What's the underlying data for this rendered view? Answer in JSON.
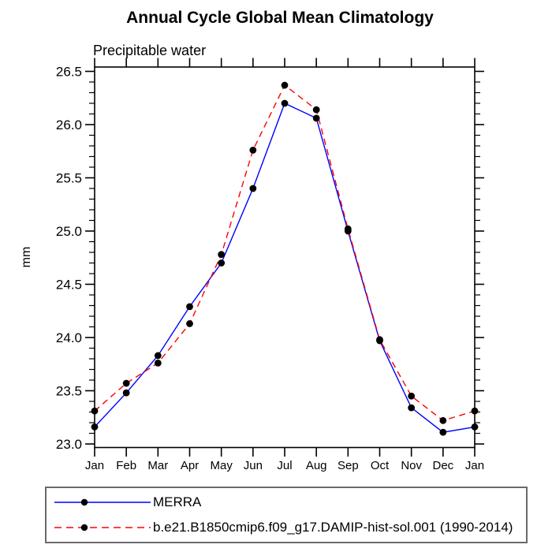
{
  "title": "Annual Cycle Global Mean Climatology",
  "subtitle": "Precipitable water",
  "chart_data": {
    "type": "line",
    "title": "Annual Cycle Global Mean Climatology",
    "subtitle": "Precipitable water",
    "xlabel": "",
    "ylabel": "mm",
    "categories": [
      "Jan",
      "Feb",
      "Mar",
      "Apr",
      "May",
      "Jun",
      "Jul",
      "Aug",
      "Sep",
      "Oct",
      "Nov",
      "Dec",
      "Jan"
    ],
    "series": [
      {
        "name": "MERRA",
        "color": "#0000ff",
        "line_style": "solid",
        "marker": "filled-circle",
        "marker_color": "#000000",
        "values": [
          23.16,
          23.48,
          23.83,
          24.29,
          24.7,
          25.4,
          26.2,
          26.06,
          25.0,
          23.97,
          23.34,
          23.11,
          23.16
        ]
      },
      {
        "name": "b.e21.B1850cmip6.f09_g17.DAMIP-hist-sol.001 (1990-2014)",
        "color": "#ff0000",
        "line_style": "dashed",
        "marker": "filled-circle",
        "marker_color": "#000000",
        "values": [
          23.31,
          23.57,
          23.76,
          24.13,
          24.78,
          25.76,
          26.37,
          26.14,
          25.02,
          23.98,
          23.45,
          23.22,
          23.31
        ]
      }
    ],
    "ylim": [
      22.96,
      26.55
    ],
    "yticks": [
      23.0,
      23.5,
      24.0,
      24.5,
      25.0,
      25.5,
      26.0,
      26.5
    ],
    "ytick_labels": [
      "23.0",
      "23.5",
      "24.0",
      "24.5",
      "25.0",
      "25.5",
      "26.0",
      "26.5"
    ],
    "y_minor_tick_interval": 0.1,
    "grid": false,
    "ticks_direction": "outward",
    "legend_position": "bottom-boxed"
  },
  "legend": {
    "items": [
      {
        "label": "MERRA",
        "color": "#0000ff",
        "line_style": "solid",
        "marker_color": "#000000"
      },
      {
        "label": "b.e21.B1850cmip6.f09_g17.DAMIP-hist-sol.001 (1990-2014)",
        "color": "#ff0000",
        "line_style": "dashed",
        "marker_color": "#000000"
      }
    ]
  },
  "colors": {
    "background": "#ffffff",
    "axis": "#000000",
    "text": "#000000",
    "series_obs": "#0000ff",
    "series_model": "#ff0000",
    "marker": "#000000"
  }
}
